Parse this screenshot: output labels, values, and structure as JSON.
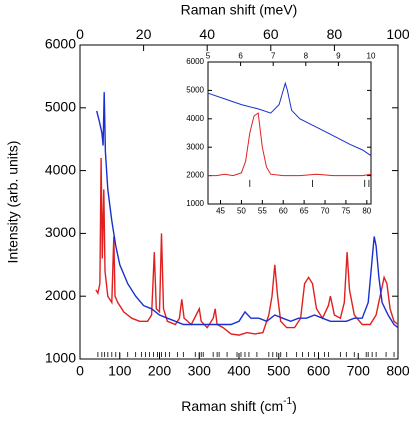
{
  "chart_data": [
    {
      "type": "line",
      "x_label": {
        "text": "Raman shift (cm",
        "sup": "-1",
        "end": ")"
      },
      "y_label": "Intensity (arb. units)",
      "x2_label": "Raman shift (meV)",
      "xlim": [
        0,
        800
      ],
      "xticks": [
        0,
        100,
        200,
        300,
        400,
        500,
        600,
        700,
        800
      ],
      "x2lim": [
        0,
        100
      ],
      "x2ticks": [
        0,
        20,
        40,
        60,
        80,
        100
      ],
      "ylim": [
        1000,
        6000
      ],
      "yticks": [
        1000,
        2000,
        3000,
        4000,
        5000,
        6000
      ],
      "markers": [
        45,
        55,
        62,
        70,
        80,
        90,
        100,
        120,
        140,
        155,
        165,
        175,
        185,
        195,
        200,
        205,
        215,
        225,
        245,
        260,
        290,
        300,
        305,
        310,
        335,
        345,
        350,
        370,
        395,
        405,
        415,
        425,
        445,
        475,
        485,
        495,
        505,
        520,
        545,
        560,
        575,
        590,
        600,
        615,
        625,
        655,
        670,
        690,
        720,
        725,
        735,
        745,
        770,
        790
      ],
      "series": [
        {
          "color": "#e02020",
          "x": [
            40,
            45,
            50,
            53,
            56,
            60,
            63,
            70,
            80,
            85,
            88,
            95,
            110,
            130,
            150,
            170,
            180,
            187,
            192,
            200,
            205,
            210,
            220,
            240,
            250,
            256,
            262,
            280,
            300,
            305,
            320,
            335,
            340,
            345,
            360,
            380,
            400,
            420,
            440,
            460,
            475,
            483,
            490,
            497,
            505,
            520,
            540,
            555,
            565,
            575,
            585,
            595,
            610,
            625,
            630,
            640,
            655,
            665,
            672,
            678,
            690,
            710,
            730,
            745,
            755,
            765,
            772,
            780,
            790,
            800
          ],
          "values": [
            2100,
            2050,
            2200,
            4200,
            2600,
            3700,
            2400,
            2000,
            1900,
            2950,
            2000,
            1900,
            1750,
            1650,
            1600,
            1600,
            1700,
            2700,
            1800,
            1750,
            3000,
            1800,
            1600,
            1550,
            1650,
            1950,
            1650,
            1550,
            1800,
            1600,
            1500,
            1650,
            1800,
            1550,
            1500,
            1400,
            1380,
            1420,
            1400,
            1420,
            1700,
            2000,
            2500,
            2000,
            1600,
            1500,
            1500,
            1650,
            2200,
            2300,
            2200,
            1800,
            1650,
            1850,
            2000,
            1700,
            1650,
            1900,
            2700,
            2100,
            1700,
            1550,
            1550,
            1700,
            2000,
            2300,
            2200,
            1800,
            1600,
            1550
          ]
        },
        {
          "color": "#1a2fd0",
          "x": [
            42,
            48,
            55,
            58,
            61,
            64,
            70,
            80,
            90,
            100,
            120,
            140,
            160,
            180,
            200,
            220,
            240,
            260,
            280,
            300,
            320,
            340,
            360,
            380,
            400,
            415,
            430,
            450,
            470,
            490,
            510,
            530,
            550,
            570,
            590,
            610,
            630,
            650,
            670,
            690,
            710,
            725,
            735,
            740,
            745,
            752,
            760,
            775,
            790,
            800
          ],
          "values": [
            4950,
            4800,
            4600,
            4400,
            5250,
            4300,
            3700,
            3200,
            2800,
            2500,
            2200,
            2000,
            1850,
            1800,
            1700,
            1650,
            1600,
            1550,
            1550,
            1550,
            1550,
            1550,
            1550,
            1550,
            1600,
            1750,
            1650,
            1650,
            1600,
            1700,
            1650,
            1600,
            1650,
            1650,
            1700,
            1650,
            1600,
            1600,
            1600,
            1650,
            1650,
            1900,
            2600,
            2950,
            2800,
            2300,
            1900,
            1700,
            1550,
            1500
          ]
        }
      ]
    },
    {
      "type": "line",
      "xlim": [
        42,
        81
      ],
      "xticks": [
        45,
        50,
        55,
        60,
        65,
        70,
        75,
        80
      ],
      "x2lim": [
        5,
        10
      ],
      "x2ticks": [
        5,
        6,
        7,
        8,
        9,
        10
      ],
      "ylim": [
        1000,
        6000
      ],
      "yticks": [
        1000,
        2000,
        3000,
        4000,
        5000,
        6000
      ],
      "markers": [
        52,
        67,
        79.5,
        80.5
      ],
      "series": [
        {
          "color": "#e02020",
          "x": [
            42,
            44,
            46,
            48,
            50,
            51,
            52,
            53,
            54,
            55,
            56,
            57,
            60,
            64,
            68,
            72,
            76,
            79,
            81
          ],
          "values": [
            2000,
            2000,
            2050,
            2000,
            2100,
            2500,
            3500,
            4100,
            4200,
            3000,
            2300,
            2050,
            2000,
            2000,
            2050,
            2000,
            2000,
            2000,
            2050
          ]
        },
        {
          "color": "#1a2fd0",
          "x": [
            42,
            46,
            50,
            54,
            57,
            59,
            60,
            60.5,
            61,
            62,
            64,
            68,
            72,
            76,
            79,
            81
          ],
          "values": [
            4900,
            4700,
            4500,
            4350,
            4200,
            4500,
            5000,
            5250,
            5000,
            4300,
            4000,
            3700,
            3400,
            3100,
            2900,
            2700
          ]
        }
      ]
    }
  ]
}
